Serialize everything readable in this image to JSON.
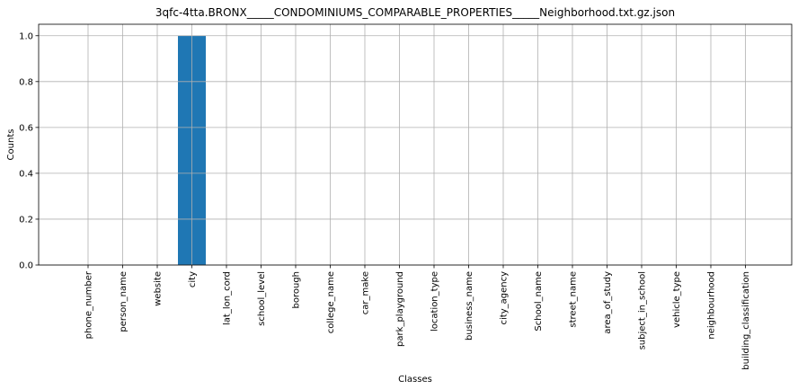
{
  "chart_data": {
    "type": "bar",
    "title": "3qfc-4tta.BRONX_____CONDOMINIUMS_COMPARABLE_PROPERTIES_____Neighborhood.txt.gz.json",
    "xlabel": "Classes",
    "ylabel": "Counts",
    "categories": [
      "phone_number",
      "person_name",
      "website",
      "city",
      "lat_lon_cord",
      "school_level",
      "borough",
      "college_name",
      "car_make",
      "park_playground",
      "location_type",
      "business_name",
      "city_agency",
      "School_name",
      "street_name",
      "area_of_study",
      "subject_in_school",
      "vehicle_type",
      "neighbourhood",
      "building_classification"
    ],
    "values": [
      0,
      0,
      0,
      1,
      0,
      0,
      0,
      0,
      0,
      0,
      0,
      0,
      0,
      0,
      0,
      0,
      0,
      0,
      0,
      0
    ],
    "ylim": [
      0,
      1.05
    ],
    "yticks": [
      "0.0",
      "0.2",
      "0.4",
      "0.6",
      "0.8",
      "1.0"
    ],
    "grid": true,
    "bar_color": "#1f77b4",
    "grid_color": "#b0b0b0"
  }
}
